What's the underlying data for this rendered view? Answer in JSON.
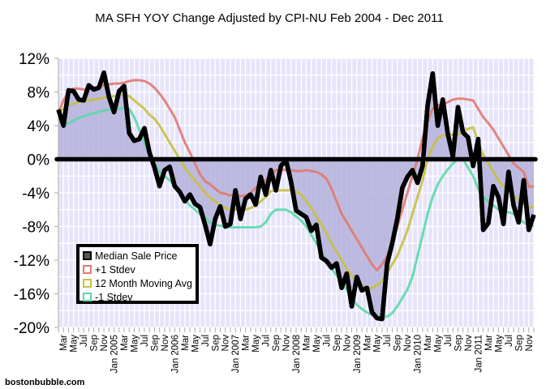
{
  "chart_data": {
    "type": "line",
    "title": "MA SFH YOY Change Adjusted by CPI-NU Feb 2004 - Dec 2011",
    "xlabel": "",
    "ylabel": "",
    "ylim": [
      -20,
      12
    ],
    "y_ticks": [
      12,
      8,
      4,
      0,
      -4,
      -8,
      -12,
      -16,
      -20
    ],
    "y_tick_labels": [
      "12%",
      "8%",
      "4%",
      "0%",
      "-4%",
      "-8%",
      "-12%",
      "-16%",
      "-20%"
    ],
    "x_start": "Feb 2004",
    "x_end": "Dec 2011",
    "x_tick_labels": [
      "Mar",
      "May",
      "Jul",
      "Sep",
      "Nov",
      "Jan 2005",
      "Mar",
      "May",
      "Jul",
      "Sep",
      "Nov",
      "Jan 2006",
      "Mar",
      "May",
      "Jul",
      "Sep",
      "Nov",
      "Jan 2007",
      "Mar",
      "May",
      "Jul",
      "Sep",
      "Nov",
      "Jan 2008",
      "Mar",
      "May",
      "Jul",
      "Sep",
      "Nov",
      "Jan 2009",
      "Mar",
      "May",
      "Jul",
      "Sep",
      "Nov",
      "Jan 2010",
      "Mar",
      "May",
      "Jul",
      "Sep",
      "Nov",
      "Jan 2011",
      "Mar",
      "May",
      "Jul",
      "Sep",
      "Nov"
    ],
    "grid": true,
    "legend_position": "bottom-left",
    "series": [
      {
        "name": "Median Sale Price",
        "color": "#000000",
        "values": [
          5.9,
          4.0,
          8.2,
          8.1,
          7.1,
          7.0,
          8.8,
          8.3,
          8.5,
          10.3,
          7.4,
          5.6,
          8.1,
          8.7,
          3.1,
          2.2,
          2.4,
          3.7,
          0.8,
          -1.0,
          -3.2,
          -1.3,
          -0.9,
          -3.2,
          -3.9,
          -5.0,
          -4.2,
          -5.3,
          -5.7,
          -7.8,
          -10.1,
          -7.1,
          -5.6,
          -8.0,
          -7.7,
          -3.7,
          -7.1,
          -4.7,
          -4.2,
          -5.4,
          -2.1,
          -4.2,
          -1.3,
          -3.7,
          -0.8,
          -0.1,
          -2.7,
          -6.1,
          -6.5,
          -6.9,
          -8.5,
          -7.8,
          -11.7,
          -12.1,
          -12.9,
          -12.4,
          -15.3,
          -13.6,
          -17.5,
          -14.0,
          -15.6,
          -15.3,
          -18.2,
          -18.9,
          -19.0,
          -12.4,
          -10.0,
          -7.1,
          -3.4,
          -2.1,
          -1.3,
          -2.8,
          -0.8,
          6.4,
          10.2,
          4.0,
          7.1,
          3.0,
          0.3,
          6.2,
          3.2,
          2.6,
          -0.8,
          2.4,
          -8.4,
          -7.6,
          -3.2,
          -4.5,
          -7.7,
          -1.5,
          -5.5,
          -7.5,
          -2.5,
          -8.4,
          -6.6
        ]
      },
      {
        "name": "+1 Stdev",
        "color": "#e07a6e",
        "values": [
          5.5,
          7.0,
          8.0,
          8.4,
          8.4,
          8.3,
          8.4,
          8.5,
          8.6,
          8.8,
          8.9,
          9.0,
          9.0,
          9.1,
          9.3,
          9.4,
          9.4,
          9.3,
          9.0,
          8.5,
          7.8,
          7.0,
          6.0,
          5.0,
          3.5,
          2.0,
          0.8,
          -0.5,
          -1.8,
          -2.6,
          -3.0,
          -3.5,
          -4.0,
          -4.1,
          -4.3,
          -4.2,
          -4.4,
          -4.3,
          -4.0,
          -3.4,
          -3.0,
          -2.5,
          -1.8,
          -1.3,
          -1.2,
          -1.3,
          -1.3,
          -1.4,
          -1.4,
          -1.3,
          -1.4,
          -1.5,
          -1.8,
          -2.3,
          -3.5,
          -5.0,
          -6.5,
          -7.5,
          -8.5,
          -9.5,
          -10.5,
          -11.5,
          -12.5,
          -13.2,
          -12.5,
          -11.5,
          -10.0,
          -8.0,
          -6.0,
          -4.0,
          -2.0,
          0.0,
          2.5,
          4.5,
          6.0,
          6.4,
          6.5,
          6.8,
          7.1,
          7.2,
          7.2,
          7.1,
          7.0,
          6.0,
          5.0,
          4.3,
          3.5,
          2.5,
          1.5,
          0.5,
          -0.5,
          -1.0,
          -1.5,
          -3.3,
          -3.2
        ]
      },
      {
        "name": "12 Month Moving Avg",
        "color": "#c8c040",
        "values": [
          5.5,
          6.0,
          6.5,
          6.6,
          6.8,
          6.9,
          7.0,
          7.1,
          7.2,
          7.3,
          7.4,
          7.5,
          7.6,
          7.8,
          7.5,
          7.0,
          6.5,
          6.0,
          5.3,
          4.8,
          4.0,
          3.0,
          2.0,
          1.0,
          0.0,
          -1.0,
          -1.8,
          -2.5,
          -3.2,
          -4.0,
          -4.6,
          -5.0,
          -5.5,
          -5.8,
          -6.0,
          -6.0,
          -5.9,
          -6.0,
          -5.8,
          -5.5,
          -5.0,
          -4.5,
          -3.8,
          -3.7,
          -3.7,
          -3.7,
          -3.7,
          -3.8,
          -4.2,
          -5.0,
          -5.8,
          -6.8,
          -7.8,
          -8.8,
          -10.0,
          -11.0,
          -12.0,
          -13.0,
          -13.8,
          -14.5,
          -15.0,
          -15.4,
          -15.3,
          -15.0,
          -14.5,
          -13.5,
          -12.5,
          -11.5,
          -10.0,
          -8.5,
          -6.5,
          -4.5,
          -2.5,
          0.0,
          1.5,
          2.5,
          2.8,
          3.0,
          2.9,
          3.0,
          3.3,
          3.6,
          3.8,
          2.0,
          0.5,
          -0.5,
          -1.5,
          -2.5,
          -3.2,
          -3.8,
          -4.3,
          -4.8,
          -5.2,
          -5.8,
          -5.6
        ]
      },
      {
        "name": "-1 Stdev",
        "color": "#5cd8a8",
        "values": [
          5.5,
          4.0,
          4.3,
          4.6,
          4.9,
          5.1,
          5.3,
          5.5,
          5.6,
          5.8,
          5.9,
          6.0,
          6.0,
          6.1,
          6.0,
          5.0,
          3.5,
          2.0,
          0.5,
          -0.5,
          -1.5,
          -2.0,
          -2.5,
          -3.2,
          -4.0,
          -4.8,
          -5.5,
          -6.0,
          -6.5,
          -7.0,
          -7.5,
          -7.8,
          -7.9,
          -8.0,
          -8.1,
          -8.1,
          -8.1,
          -8.1,
          -8.1,
          -8.1,
          -8.0,
          -7.5,
          -6.5,
          -6.0,
          -6.0,
          -6.0,
          -6.3,
          -6.8,
          -7.3,
          -8.0,
          -9.0,
          -10.0,
          -11.0,
          -12.0,
          -13.0,
          -13.8,
          -14.5,
          -15.5,
          -16.5,
          -17.3,
          -17.8,
          -18.2,
          -18.5,
          -18.7,
          -18.8,
          -18.7,
          -18.3,
          -17.5,
          -16.5,
          -15.5,
          -14.0,
          -11.5,
          -9.0,
          -6.5,
          -4.5,
          -3.0,
          -2.0,
          -1.2,
          -0.5,
          0.0,
          0.0,
          -1.0,
          -2.0,
          -3.5,
          -4.5,
          -5.0,
          -5.5,
          -6.0,
          -6.2,
          -6.3,
          -6.5,
          -7.0,
          -7.5,
          -7.8,
          -7.9
        ]
      }
    ],
    "credit": "bostonbubble.com"
  },
  "colors": {
    "plot_bg": "#e6e4fb",
    "fill": "#b4b2dc"
  }
}
